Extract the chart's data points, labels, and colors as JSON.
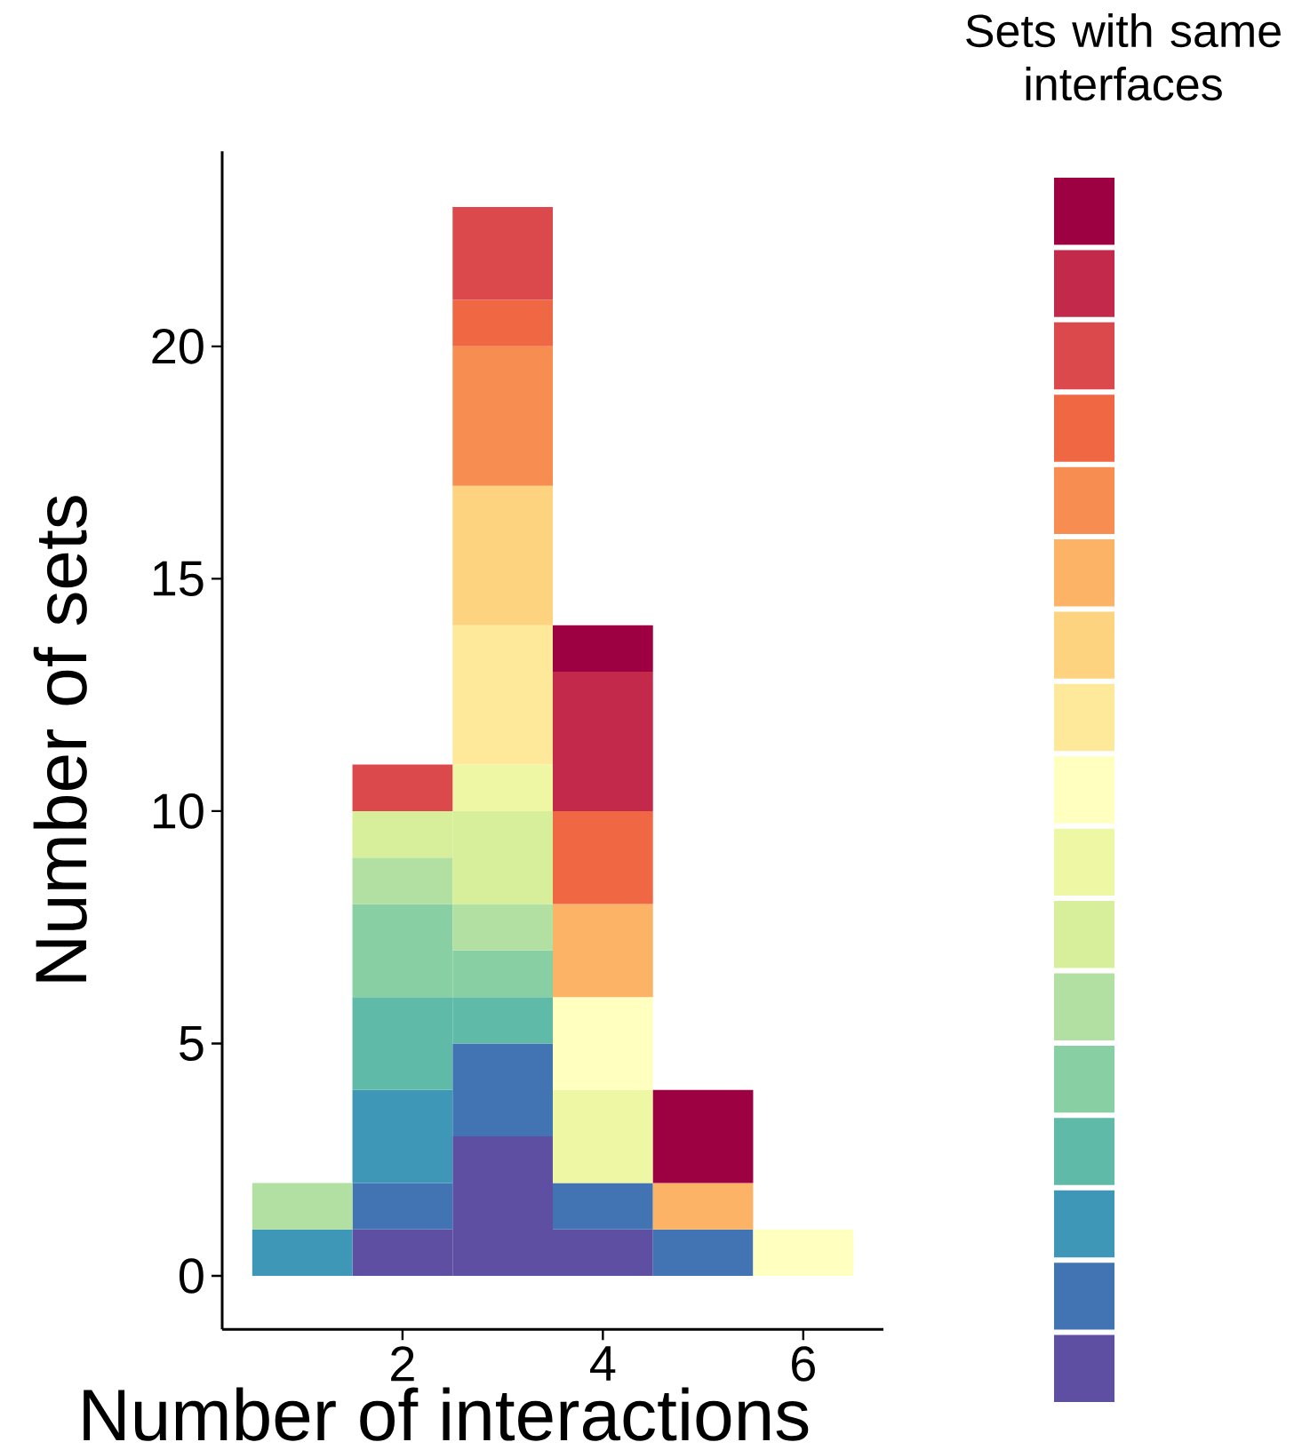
{
  "chart_data": {
    "type": "bar",
    "stacked": true,
    "xlabel": "Number of interactions",
    "ylabel": "Number of sets",
    "legend_title": "Sets with same interfaces",
    "x": [
      1,
      2,
      3,
      4,
      5,
      6
    ],
    "xlim": [
      0.2,
      6.8
    ],
    "xticks": [
      2,
      4,
      6
    ],
    "ylim": [
      -1.15,
      24.2
    ],
    "yticks": [
      0,
      5,
      10,
      15,
      20
    ],
    "series": [
      {
        "color": "#5e4fa2",
        "values": [
          null,
          1,
          3,
          1,
          null,
          null
        ]
      },
      {
        "color": "#4273b3",
        "values": [
          null,
          1,
          2,
          1,
          1,
          null
        ]
      },
      {
        "color": "#3f97b7",
        "values": [
          1,
          2,
          null,
          null,
          null,
          null
        ]
      },
      {
        "color": "#5fbaa7",
        "values": [
          null,
          2,
          1,
          null,
          null,
          null
        ]
      },
      {
        "color": "#88d0a4",
        "values": [
          null,
          2,
          1,
          null,
          null,
          null
        ]
      },
      {
        "color": "#b2e0a2",
        "values": [
          1,
          1,
          1,
          null,
          null,
          null
        ]
      },
      {
        "color": "#d7ef9b",
        "values": [
          null,
          1,
          2,
          null,
          null,
          null
        ]
      },
      {
        "color": "#eef8a4",
        "values": [
          null,
          null,
          1,
          2,
          null,
          null
        ]
      },
      {
        "color": "#ffffbf",
        "values": [
          null,
          null,
          null,
          2,
          null,
          1
        ]
      },
      {
        "color": "#fee99b",
        "values": [
          null,
          null,
          3,
          null,
          null,
          null
        ]
      },
      {
        "color": "#fdd380",
        "values": [
          null,
          null,
          3,
          null,
          null,
          null
        ]
      },
      {
        "color": "#fdb365",
        "values": [
          null,
          null,
          null,
          2,
          1,
          null
        ]
      },
      {
        "color": "#f88d52",
        "values": [
          null,
          null,
          3,
          null,
          null,
          null
        ]
      },
      {
        "color": "#f06744",
        "values": [
          null,
          null,
          1,
          2,
          null,
          null
        ]
      },
      {
        "color": "#dc494c",
        "values": [
          null,
          1,
          2,
          null,
          null,
          null
        ]
      },
      {
        "color": "#c2294a",
        "values": [
          null,
          null,
          null,
          3,
          null,
          null
        ]
      },
      {
        "color": "#9e0142",
        "values": [
          null,
          null,
          null,
          1,
          2,
          null
        ]
      }
    ]
  }
}
